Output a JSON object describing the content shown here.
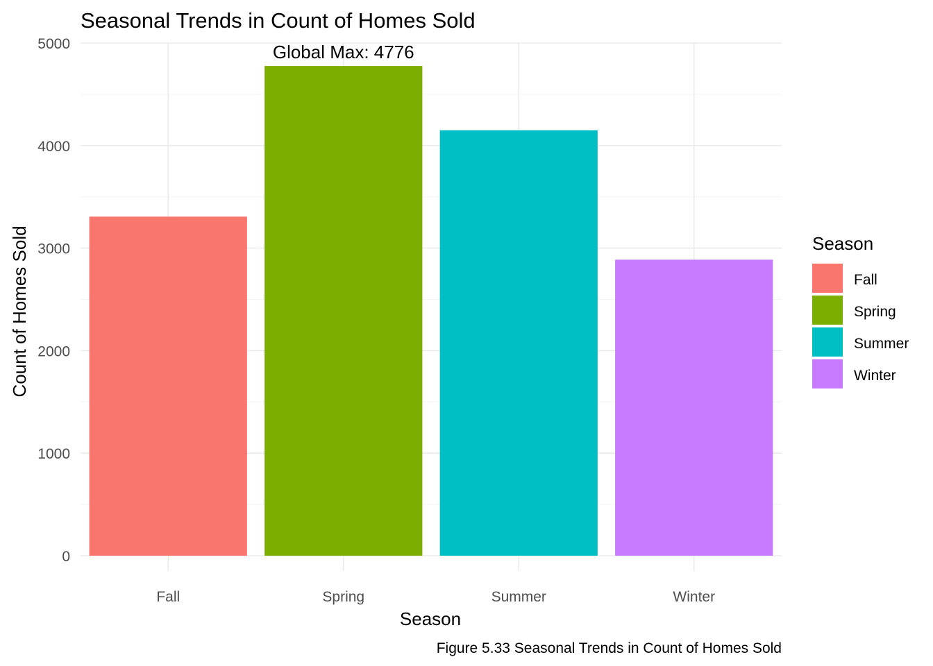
{
  "chart_data": {
    "type": "bar",
    "title": "Seasonal Trends in Count of Homes Sold",
    "xlabel": "Season",
    "ylabel": "Count of Homes Sold",
    "categories": [
      "Fall",
      "Spring",
      "Summer",
      "Winter"
    ],
    "values": [
      3307,
      4776,
      4149,
      2887
    ],
    "colors": [
      "#F8766D",
      "#7CAE00",
      "#00BFC4",
      "#C77CFF"
    ],
    "ylim": [
      0,
      5000
    ],
    "yticks": [
      0,
      1000,
      2000,
      3000,
      4000,
      5000
    ],
    "grid": true,
    "legend": {
      "title": "Season",
      "position": "right",
      "entries": [
        "Fall",
        "Spring",
        "Summer",
        "Winter"
      ]
    },
    "annotation": {
      "text": "Global Max: 4776",
      "category": "Spring",
      "value": 4776
    },
    "caption": "Figure 5.33 Seasonal Trends in Count of Homes Sold"
  }
}
